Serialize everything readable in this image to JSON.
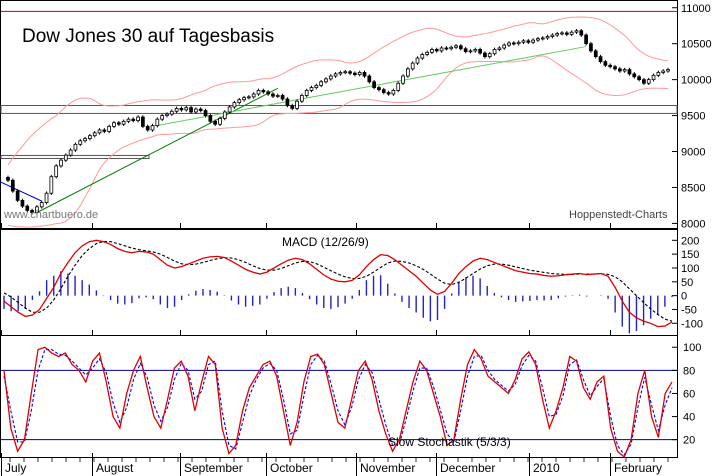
{
  "chart_data": [
    {
      "type": "candlestick",
      "title": "Dow Jones 30 auf Tagesbasis",
      "watermark": "www.chartbuero.de",
      "source": "Hoppenstedt-Charts",
      "yticks": [
        8000,
        8500,
        9000,
        9500,
        10000,
        10500,
        11000
      ],
      "ylim": [
        7950,
        11080
      ],
      "resistance_level": 10950,
      "support_zone": [
        9530,
        9640
      ],
      "support_box_left": [
        8915,
        8945
      ],
      "series_color_up": "#ffffff",
      "series_color_down": "#000000",
      "trendline_color": "#008000",
      "band_color": "#ff9999",
      "close": [
        8600,
        8450,
        8320,
        8240,
        8180,
        8150,
        8230,
        8290,
        8420,
        8650,
        8800,
        8880,
        8950,
        9020,
        9100,
        9150,
        9180,
        9220,
        9260,
        9300,
        9280,
        9350,
        9400,
        9380,
        9420,
        9450,
        9430,
        9480,
        9350,
        9300,
        9360,
        9450,
        9500,
        9520,
        9560,
        9600,
        9580,
        9610,
        9550,
        9590,
        9570,
        9500,
        9420,
        9380,
        9460,
        9550,
        9620,
        9680,
        9720,
        9750,
        9760,
        9800,
        9850,
        9830,
        9800,
        9770,
        9780,
        9730,
        9640,
        9600,
        9700,
        9780,
        9850,
        9890,
        9920,
        9970,
        10010,
        10050,
        10080,
        10100,
        10110,
        10090,
        10070,
        10100,
        10050,
        9970,
        9890,
        9860,
        9820,
        9800,
        9850,
        9950,
        10050,
        10150,
        10230,
        10300,
        10350,
        10380,
        10420,
        10400,
        10440,
        10430,
        10450,
        10470,
        10430,
        10390,
        10400,
        10420,
        10370,
        10320,
        10360,
        10420,
        10440,
        10480,
        10510,
        10500,
        10520,
        10540,
        10520,
        10550,
        10570,
        10580,
        10600,
        10620,
        10640,
        10650,
        10630,
        10660,
        10680,
        10620,
        10500,
        10400,
        10320,
        10250,
        10200,
        10180,
        10150,
        10120,
        10140,
        10080,
        10040,
        10000,
        9950,
        10000,
        10060,
        10100,
        10120,
        10140
      ],
      "macd": [
        -20,
        -40,
        -60,
        -75,
        -70,
        -50,
        -10,
        30,
        80,
        120,
        155,
        180,
        195,
        200,
        195,
        185,
        170,
        160,
        155,
        160,
        158,
        150,
        130,
        110,
        100,
        105,
        115,
        125,
        135,
        140,
        142,
        138,
        125,
        110,
        95,
        85,
        78,
        85,
        100,
        115,
        128,
        135,
        130,
        115,
        95,
        75,
        60,
        52,
        50,
        55,
        75,
        105,
        130,
        148,
        145,
        130,
        110,
        90,
        70,
        45,
        20,
        5,
        15,
        45,
        80,
        105,
        125,
        135,
        130,
        120,
        110,
        100,
        90,
        85,
        80,
        78,
        73,
        70,
        72,
        75,
        78,
        80,
        76,
        78,
        80,
        70,
        30,
        -20,
        -60,
        -80,
        -92,
        -100,
        -112,
        -110,
        -95
      ],
      "macd_signal": [
        10,
        -5,
        -25,
        -45,
        -60,
        -60,
        -45,
        -15,
        25,
        70,
        110,
        145,
        170,
        188,
        196,
        195,
        188,
        180,
        172,
        166,
        162,
        158,
        150,
        138,
        125,
        115,
        112,
        114,
        120,
        127,
        133,
        137,
        136,
        130,
        120,
        108,
        98,
        92,
        92,
        98,
        108,
        118,
        124,
        123,
        115,
        103,
        90,
        78,
        68,
        62,
        62,
        70,
        85,
        102,
        118,
        125,
        124,
        118,
        108,
        95,
        78,
        60,
        45,
        40,
        48,
        63,
        80,
        96,
        108,
        114,
        114,
        110,
        104,
        98,
        92,
        88,
        84,
        80,
        78,
        77,
        77,
        78,
        78,
        78,
        79,
        77,
        68,
        50,
        25,
        0,
        -25,
        -48,
        -68,
        -85,
        -92
      ],
      "macd_label": "MACD (12/26/9)",
      "macd_yticks": [
        -100,
        -50,
        0,
        50,
        100,
        150,
        200
      ],
      "macd_ylim": [
        -135,
        230
      ],
      "stoch_k": [
        80,
        30,
        10,
        20,
        60,
        98,
        100,
        95,
        92,
        95,
        85,
        80,
        70,
        88,
        95,
        70,
        40,
        30,
        60,
        80,
        92,
        65,
        40,
        30,
        55,
        82,
        88,
        75,
        45,
        70,
        92,
        85,
        30,
        8,
        15,
        45,
        65,
        75,
        85,
        88,
        75,
        45,
        15,
        35,
        70,
        92,
        94,
        85,
        60,
        35,
        30,
        55,
        80,
        88,
        72,
        45,
        25,
        10,
        20,
        45,
        70,
        88,
        80,
        60,
        40,
        15,
        20,
        55,
        85,
        98,
        90,
        75,
        70,
        65,
        60,
        72,
        90,
        96,
        85,
        55,
        30,
        45,
        65,
        92,
        88,
        65,
        55,
        70,
        75,
        30,
        10,
        5,
        20,
        60,
        80,
        40,
        22,
        60,
        70
      ],
      "stoch_d": [
        75,
        45,
        18,
        18,
        45,
        80,
        98,
        98,
        94,
        93,
        88,
        82,
        76,
        82,
        90,
        78,
        52,
        35,
        48,
        72,
        86,
        74,
        50,
        36,
        48,
        72,
        86,
        80,
        55,
        62,
        85,
        88,
        45,
        15,
        12,
        35,
        58,
        72,
        82,
        86,
        80,
        55,
        25,
        28,
        58,
        85,
        93,
        88,
        68,
        45,
        33,
        48,
        72,
        85,
        78,
        55,
        33,
        15,
        16,
        38,
        62,
        82,
        82,
        66,
        46,
        25,
        18,
        45,
        75,
        92,
        93,
        80,
        72,
        67,
        62,
        68,
        84,
        93,
        88,
        65,
        40,
        42,
        58,
        85,
        89,
        72,
        58,
        66,
        73,
        40,
        15,
        7,
        16,
        48,
        74,
        50,
        28,
        50,
        65
      ],
      "stoch_label": "Slow Stochastik (5/3/3)",
      "stoch_yticks": [
        20,
        40,
        60,
        80,
        100
      ],
      "stoch_ylim": [
        5,
        108
      ],
      "stoch_hlines": [
        20,
        80
      ],
      "months": [
        "July",
        "August",
        "September",
        "October",
        "November",
        "December",
        "2010",
        "February"
      ]
    }
  ]
}
